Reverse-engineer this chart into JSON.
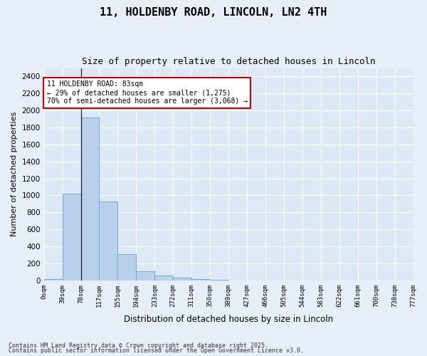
{
  "title1": "11, HOLDENBY ROAD, LINCOLN, LN2 4TH",
  "title2": "Size of property relative to detached houses in Lincoln",
  "xlabel": "Distribution of detached houses by size in Lincoln",
  "ylabel": "Number of detached properties",
  "bar_color": "#b8d0ea",
  "bar_edge_color": "#6baed6",
  "background_color": "#dce8f5",
  "grid_color": "#ffffff",
  "fig_background": "#e8eef8",
  "bins": [
    "0sqm",
    "39sqm",
    "78sqm",
    "117sqm",
    "155sqm",
    "194sqm",
    "233sqm",
    "272sqm",
    "311sqm",
    "350sqm",
    "389sqm",
    "427sqm",
    "466sqm",
    "505sqm",
    "544sqm",
    "583sqm",
    "622sqm",
    "661sqm",
    "700sqm",
    "738sqm",
    "777sqm"
  ],
  "values": [
    15,
    1025,
    1920,
    930,
    310,
    105,
    55,
    35,
    15,
    5,
    2,
    1,
    0,
    0,
    0,
    0,
    0,
    0,
    0,
    0
  ],
  "ylim": [
    0,
    2500
  ],
  "yticks": [
    0,
    200,
    400,
    600,
    800,
    1000,
    1200,
    1400,
    1600,
    1800,
    2000,
    2200,
    2400
  ],
  "property_line_x": 2,
  "annotation_text": "11 HOLDENBY ROAD: 83sqm\n← 29% of detached houses are smaller (1,275)\n70% of semi-detached houses are larger (3,068) →",
  "annotation_box_color": "#cc0000",
  "footer1": "Contains HM Land Registry data © Crown copyright and database right 2025.",
  "footer2": "Contains public sector information licensed under the Open Government Licence v3.0."
}
